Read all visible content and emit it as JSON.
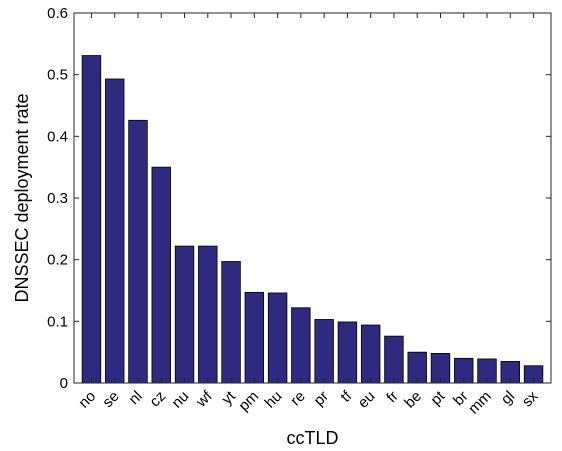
{
  "chart_data": {
    "type": "bar",
    "xlabel": "ccTLD",
    "ylabel": "DNSSEC deployment rate",
    "ylim": [
      0,
      0.6
    ],
    "yticks": [
      "0",
      "0.1",
      "0.2",
      "0.3",
      "0.4",
      "0.5",
      "0.6"
    ],
    "grid": false,
    "bar_color": "#2e2a7f",
    "categories": [
      "no",
      "se",
      "nl",
      "cz",
      "nu",
      "wf",
      "yt",
      "pm",
      "hu",
      "re",
      "pr",
      "tf",
      "eu",
      "fr",
      "be",
      "pt",
      "br",
      "mm",
      "gl",
      "sx"
    ],
    "values": [
      0.531,
      0.493,
      0.426,
      0.35,
      0.222,
      0.222,
      0.197,
      0.147,
      0.146,
      0.122,
      0.103,
      0.099,
      0.094,
      0.076,
      0.05,
      0.048,
      0.04,
      0.039,
      0.035,
      0.028
    ]
  }
}
